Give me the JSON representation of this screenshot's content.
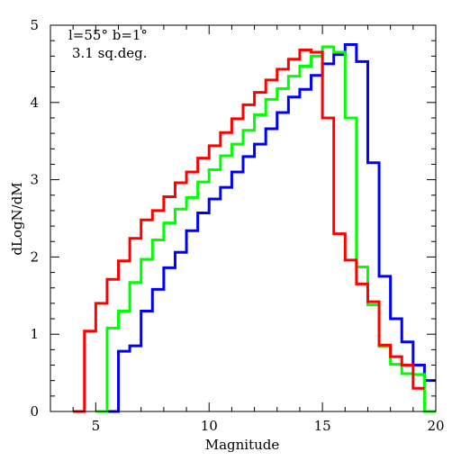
{
  "chart_data": {
    "type": "line",
    "step": true,
    "xlabel": "Magnitude",
    "ylabel": "dLogN/dM",
    "xlim": [
      3,
      20
    ],
    "ylim": [
      0,
      5
    ],
    "x_ticks": [
      5,
      10,
      15,
      20
    ],
    "y_ticks": [
      0,
      1,
      2,
      3,
      4,
      5
    ],
    "annotations": {
      "line1": "l=55° b=1°",
      "line2": "3.1 sq.deg."
    },
    "bin_edges": [
      4,
      4.5,
      5,
      5.5,
      6,
      6.5,
      7,
      7.5,
      8,
      8.5,
      9,
      9.5,
      10,
      10.5,
      11,
      11.5,
      12,
      12.5,
      13,
      13.5,
      14,
      14.5,
      15,
      15.5,
      16,
      16.5,
      17,
      17.5,
      18,
      18.5,
      19,
      19.5,
      20
    ],
    "series": [
      {
        "color": "#0000ff",
        "values": [
          null,
          null,
          null,
          0.0,
          0.78,
          0.85,
          1.3,
          1.58,
          1.86,
          2.06,
          2.34,
          2.57,
          2.75,
          2.9,
          3.1,
          3.3,
          3.46,
          3.66,
          3.87,
          4.07,
          4.17,
          4.35,
          4.5,
          4.62,
          4.75,
          4.53,
          3.22,
          1.75,
          1.2,
          0.9,
          0.6,
          0.4
        ]
      },
      {
        "color": "#00ff00",
        "values": [
          null,
          null,
          0.0,
          1.08,
          1.3,
          1.67,
          1.97,
          2.22,
          2.44,
          2.62,
          2.77,
          2.97,
          3.13,
          3.31,
          3.46,
          3.64,
          3.84,
          4.04,
          4.18,
          4.34,
          4.47,
          4.6,
          4.72,
          4.65,
          3.8,
          1.87,
          1.38,
          0.84,
          0.61,
          0.49,
          0.48,
          0.0
        ]
      },
      {
        "color": "#ff0000",
        "values": [
          0.0,
          1.04,
          1.4,
          1.71,
          1.95,
          2.24,
          2.48,
          2.6,
          2.78,
          2.96,
          3.1,
          3.28,
          3.44,
          3.61,
          3.79,
          3.97,
          4.13,
          4.29,
          4.43,
          4.56,
          4.68,
          4.65,
          3.8,
          2.3,
          1.96,
          1.65,
          1.42,
          0.86,
          0.71,
          0.6,
          0.3,
          null
        ]
      }
    ]
  }
}
